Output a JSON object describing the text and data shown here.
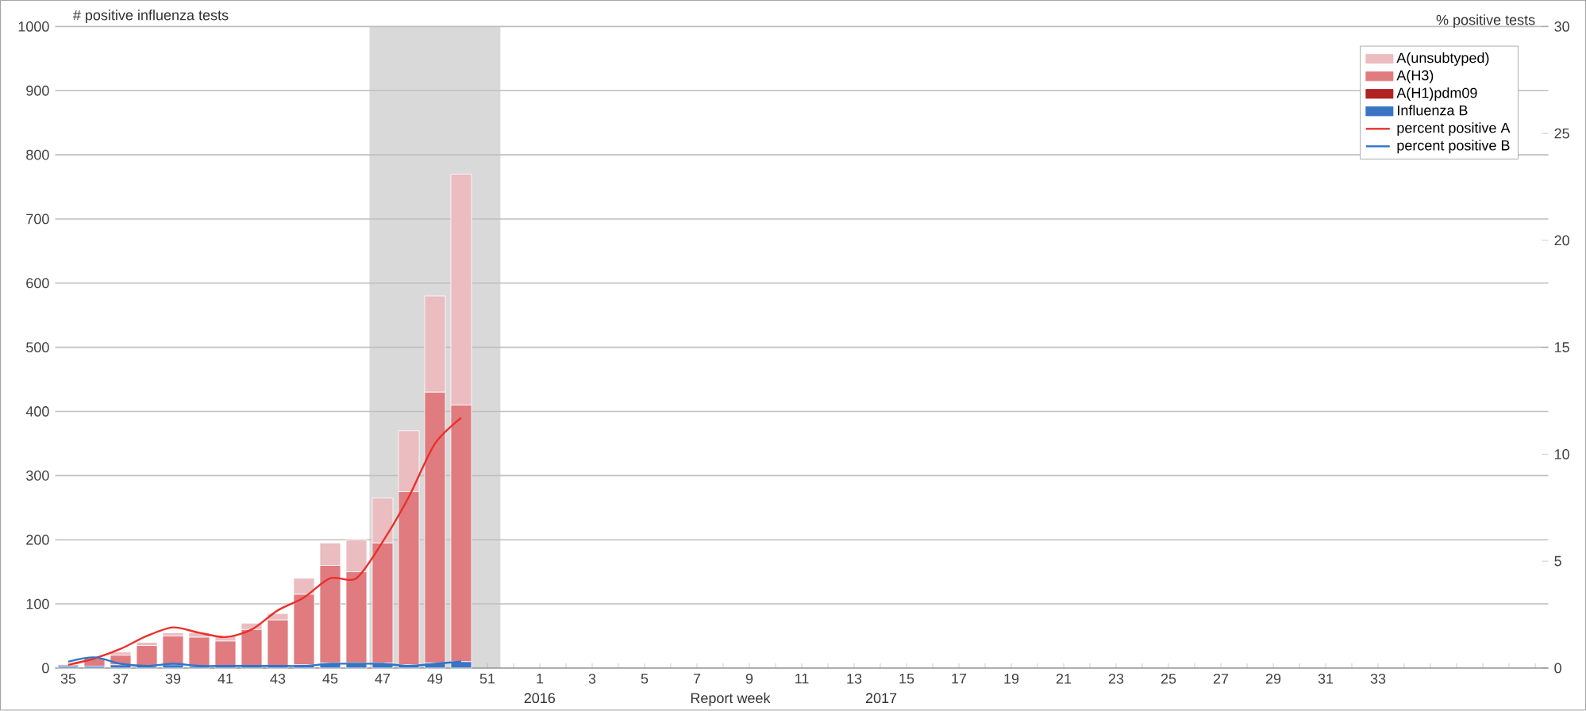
{
  "chart_data": {
    "type": "bar",
    "stacked": true,
    "xlabel": "Report week",
    "ylabel": "# positive influenza tests",
    "y2label": "% positive tests",
    "categories": [
      "35",
      null,
      "37",
      null,
      "39",
      null,
      "41",
      null,
      "43",
      null,
      "45",
      null,
      "47",
      null,
      "49",
      null,
      "51",
      null,
      "1",
      null,
      "3",
      null,
      "5",
      null,
      "7",
      null,
      "9",
      null,
      "11",
      null,
      "13",
      null,
      "15",
      null,
      "17",
      null,
      "19",
      null,
      "21",
      null,
      "23",
      null,
      "25",
      null,
      "27",
      null,
      "29",
      null,
      "31",
      null,
      "33",
      null,
      null,
      null,
      null,
      null,
      null
    ],
    "ylim": [
      0,
      1000
    ],
    "yticks": [
      0,
      100,
      200,
      300,
      400,
      500,
      600,
      700,
      800,
      900,
      1000
    ],
    "y2lim": [
      0,
      30
    ],
    "y2ticks": [
      0,
      5,
      10,
      15,
      20,
      25,
      30
    ],
    "grid": "y",
    "legend": "top right",
    "annotations": [
      "2016",
      "2017"
    ],
    "series": [
      {
        "name": "Influenza B",
        "color": "#3a75c4",
        "values": [
          3,
          3,
          5,
          3,
          5,
          3,
          3,
          3,
          3,
          5,
          8,
          8,
          8,
          5,
          8,
          10,
          null,
          null,
          null,
          null,
          null,
          null,
          null,
          null,
          null,
          null,
          null,
          null,
          null,
          null,
          null,
          null,
          null,
          null,
          null,
          null,
          null,
          null,
          null,
          null,
          null,
          null,
          null,
          null,
          null,
          null,
          null,
          null,
          null,
          null,
          null,
          null,
          null,
          null,
          null,
          null,
          null
        ]
      },
      {
        "name": "A(H1)pdm09",
        "color": "#b22222",
        "values": [
          0,
          0,
          0,
          0,
          0,
          0,
          0,
          0,
          0,
          0,
          0,
          0,
          0,
          0,
          0,
          0,
          null,
          null,
          null,
          null,
          null,
          null,
          null,
          null,
          null,
          null,
          null,
          null,
          null,
          null,
          null,
          null,
          null,
          null,
          null,
          null,
          null,
          null,
          null,
          null,
          null,
          null,
          null,
          null,
          null,
          null,
          null,
          null,
          null,
          null,
          null,
          null,
          null,
          null,
          null,
          null,
          null
        ]
      },
      {
        "name": "A(H3)",
        "color": "#e07b7f",
        "values": [
          2,
          12,
          15,
          32,
          45,
          45,
          39,
          57,
          72,
          110,
          152,
          142,
          187,
          270,
          422,
          400,
          null,
          null,
          null,
          null,
          null,
          null,
          null,
          null,
          null,
          null,
          null,
          null,
          null,
          null,
          null,
          null,
          null,
          null,
          null,
          null,
          null,
          null,
          null,
          null,
          null,
          null,
          null,
          null,
          null,
          null,
          null,
          null,
          null,
          null,
          null,
          null,
          null,
          null,
          null,
          null,
          null
        ]
      },
      {
        "name": "A(unsubtyped)",
        "color": "#ebbcc0",
        "values": [
          0,
          0,
          5,
          5,
          5,
          7,
          8,
          10,
          10,
          25,
          35,
          50,
          70,
          95,
          150,
          360,
          null,
          null,
          null,
          null,
          null,
          null,
          null,
          null,
          null,
          null,
          null,
          null,
          null,
          null,
          null,
          null,
          null,
          null,
          null,
          null,
          null,
          null,
          null,
          null,
          null,
          null,
          null,
          null,
          null,
          null,
          null,
          null,
          null,
          null,
          null,
          null,
          null,
          null,
          null,
          null,
          null
        ]
      },
      {
        "name": "percent positive A",
        "type": "line",
        "axis": "y2",
        "color": "#e8302a",
        "values": [
          0.15,
          0.45,
          0.9,
          1.5,
          1.9,
          1.65,
          1.45,
          1.8,
          2.7,
          3.3,
          4.2,
          4.2,
          5.9,
          8.0,
          10.5,
          11.7,
          null,
          null,
          null,
          null,
          null,
          null,
          null,
          null,
          null,
          null,
          null,
          null,
          null,
          null,
          null,
          null,
          null,
          null,
          null,
          null,
          null,
          null,
          null,
          null,
          null,
          null,
          null,
          null,
          null,
          null,
          null,
          null,
          null,
          null,
          null,
          null,
          null,
          null,
          null,
          null,
          null
        ]
      },
      {
        "name": "percent positive B",
        "type": "line",
        "axis": "y2",
        "color": "#2e75c8",
        "values": [
          0.3,
          0.5,
          0.2,
          0.1,
          0.2,
          0.1,
          0.1,
          0.1,
          0.1,
          0.1,
          0.2,
          0.2,
          0.2,
          0.1,
          0.2,
          0.3,
          null,
          null,
          null,
          null,
          null,
          null,
          null,
          null,
          null,
          null,
          null,
          null,
          null,
          null,
          null,
          null,
          null,
          null,
          null,
          null,
          null,
          null,
          null,
          null,
          null,
          null,
          null,
          null,
          null,
          null,
          null,
          null,
          null,
          null,
          null,
          null,
          null,
          null,
          null,
          null,
          null
        ]
      }
    ]
  }
}
